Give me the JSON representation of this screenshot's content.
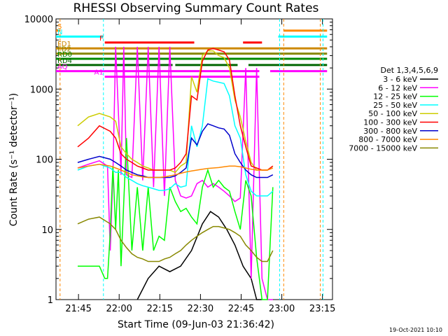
{
  "chart_data": {
    "type": "line",
    "title": "RHESSI Observing Summary Count Rates",
    "xlabel": "Start Time (09-Jun-03 21:36:42)",
    "ylabel": "Count Rate (s⁻¹ detector⁻¹)",
    "footer": "19-Oct-2021 10:10",
    "y_scale": "log",
    "ylim": [
      1,
      10000
    ],
    "xlim_minutes": [
      0,
      102
    ],
    "x_ticks": [
      {
        "label": "21:45",
        "minute": 8.3
      },
      {
        "label": "22:00",
        "minute": 23.3
      },
      {
        "label": "22:15",
        "minute": 38.3
      },
      {
        "label": "22:30",
        "minute": 53.3
      },
      {
        "label": "22:45",
        "minute": 68.3
      },
      {
        "label": "23:00",
        "minute": 83.3
      },
      {
        "label": "23:15",
        "minute": 98.3
      }
    ],
    "y_ticks": [
      {
        "label": "1",
        "value": 1
      },
      {
        "label": "10",
        "value": 10
      },
      {
        "label": "100",
        "value": 100
      },
      {
        "label": "1000",
        "value": 1000
      },
      {
        "label": "10000",
        "value": 10000
      }
    ],
    "legend_title": "Det 1,3,4,5,6,9",
    "legend_position": "right",
    "series": [
      {
        "name": "3 - 6 keV",
        "color": "#000000",
        "x": [
          30,
          34,
          38,
          42,
          46,
          50,
          54,
          57,
          60,
          63,
          66,
          69,
          72,
          74,
          75,
          76
        ],
        "y": [
          1,
          2,
          3,
          2.5,
          3,
          5,
          12,
          18,
          15,
          10,
          6,
          3,
          2,
          1,
          1,
          1
        ]
      },
      {
        "name": "6 - 12 keV",
        "color": "#ff00ff",
        "x": [
          8,
          12,
          16,
          19,
          20,
          21,
          22,
          24,
          25,
          26,
          28,
          30,
          32,
          34,
          36,
          38,
          40,
          42,
          44,
          46,
          48,
          50,
          52,
          54,
          56,
          58,
          60,
          62,
          64,
          66,
          68,
          70,
          72,
          74,
          76,
          78,
          80
        ],
        "y": [
          75,
          85,
          95,
          80,
          5,
          60,
          4000,
          60,
          4000,
          60,
          55,
          4000,
          50,
          4000,
          40,
          4000,
          30,
          4000,
          50,
          30,
          28,
          30,
          45,
          50,
          40,
          45,
          40,
          35,
          30,
          25,
          28,
          2000,
          2,
          2000,
          2,
          1,
          1
        ]
      },
      {
        "name": "12 - 25 keV",
        "color": "#00ff00",
        "x": [
          8,
          12,
          16,
          18,
          19,
          20,
          21,
          22,
          23,
          24,
          26,
          28,
          30,
          32,
          34,
          36,
          38,
          40,
          42,
          44,
          46,
          48,
          50,
          52,
          54,
          56,
          58,
          60,
          62,
          64,
          66,
          68,
          70,
          72,
          74,
          76,
          78,
          80
        ],
        "y": [
          3,
          3,
          3,
          2,
          2,
          9,
          80,
          10,
          70,
          3,
          200,
          5,
          40,
          5,
          40,
          5,
          8,
          7,
          40,
          25,
          18,
          20,
          15,
          12,
          40,
          70,
          40,
          50,
          40,
          35,
          18,
          10,
          50,
          30,
          4,
          1,
          1,
          40
        ]
      },
      {
        "name": "25 - 50 keV",
        "color": "#00ffff",
        "x": [
          8,
          12,
          16,
          20,
          22,
          24,
          26,
          28,
          30,
          32,
          34,
          36,
          38,
          40,
          42,
          44,
          46,
          48,
          50,
          52,
          54,
          56,
          58,
          60,
          62,
          64,
          66,
          68,
          70,
          72,
          74,
          76,
          78,
          80
        ],
        "y": [
          70,
          80,
          85,
          75,
          65,
          65,
          55,
          50,
          45,
          42,
          40,
          38,
          36,
          36,
          38,
          45,
          40,
          42,
          300,
          150,
          300,
          1400,
          1300,
          1250,
          1200,
          800,
          300,
          200,
          60,
          35,
          30,
          30,
          30,
          35
        ]
      },
      {
        "name": "50 - 100 keV",
        "color": "#cccc00",
        "x": [
          8,
          12,
          16,
          20,
          22,
          24,
          26,
          28,
          30,
          32,
          34,
          36,
          38,
          40,
          42,
          44,
          46,
          48,
          50,
          52,
          54,
          56,
          58,
          60,
          62,
          64,
          66,
          68,
          70,
          72,
          74,
          76,
          78,
          80
        ],
        "y": [
          300,
          400,
          450,
          400,
          350,
          150,
          120,
          100,
          90,
          80,
          75,
          70,
          70,
          70,
          70,
          65,
          80,
          90,
          1500,
          900,
          3000,
          3500,
          3500,
          3000,
          2800,
          2000,
          700,
          400,
          180,
          90,
          70,
          70,
          70,
          80
        ]
      },
      {
        "name": "100 - 300 keV",
        "color": "#ff0000",
        "x": [
          8,
          12,
          16,
          20,
          22,
          24,
          26,
          28,
          30,
          32,
          34,
          36,
          38,
          40,
          42,
          44,
          46,
          48,
          50,
          52,
          54,
          56,
          58,
          60,
          62,
          64,
          66,
          68,
          70,
          72,
          74,
          76,
          78,
          80
        ],
        "y": [
          150,
          200,
          300,
          250,
          200,
          120,
          100,
          90,
          80,
          75,
          70,
          70,
          70,
          70,
          70,
          75,
          90,
          120,
          800,
          700,
          2500,
          3600,
          3800,
          3600,
          3400,
          2600,
          800,
          300,
          150,
          80,
          75,
          70,
          70,
          80
        ]
      },
      {
        "name": "300 - 800 keV",
        "color": "#0000cc",
        "x": [
          8,
          12,
          16,
          20,
          22,
          24,
          26,
          28,
          30,
          32,
          34,
          36,
          38,
          40,
          42,
          44,
          46,
          48,
          50,
          52,
          54,
          56,
          58,
          60,
          62,
          64,
          66,
          68,
          70,
          72,
          74,
          76,
          78,
          80
        ],
        "y": [
          90,
          100,
          110,
          100,
          90,
          80,
          70,
          65,
          60,
          58,
          55,
          55,
          55,
          55,
          55,
          58,
          65,
          75,
          200,
          160,
          250,
          320,
          300,
          280,
          270,
          220,
          120,
          90,
          70,
          60,
          55,
          55,
          55,
          60
        ]
      },
      {
        "name": "800 - 7000 keV",
        "color": "#ff8800",
        "x": [
          8,
          12,
          16,
          20,
          22,
          24,
          26,
          28,
          30,
          32,
          34,
          36,
          38,
          40,
          42,
          44,
          46,
          48,
          50,
          52,
          54,
          56,
          58,
          60,
          62,
          64,
          66,
          68,
          70,
          72,
          74,
          76,
          78,
          80
        ],
        "y": [
          75,
          80,
          85,
          80,
          75,
          70,
          65,
          60,
          58,
          56,
          55,
          55,
          55,
          56,
          58,
          60,
          63,
          66,
          68,
          70,
          72,
          74,
          75,
          76,
          78,
          80,
          80,
          78,
          75,
          72,
          70,
          70,
          70,
          75
        ]
      },
      {
        "name": "7000 - 15000 keV",
        "color": "#888800",
        "x": [
          8,
          12,
          16,
          20,
          22,
          24,
          26,
          28,
          30,
          32,
          34,
          36,
          38,
          40,
          42,
          44,
          46,
          48,
          50,
          52,
          54,
          56,
          58,
          60,
          62,
          64,
          66,
          68,
          70,
          72,
          74,
          76,
          78,
          80
        ],
        "y": [
          12,
          14,
          15,
          12,
          10,
          7,
          5.5,
          4.5,
          4,
          3.8,
          3.5,
          3.5,
          3.5,
          3.8,
          4,
          4.5,
          5,
          6,
          7,
          8,
          9,
          10,
          11,
          11,
          10.5,
          10,
          9,
          8,
          6,
          5,
          4,
          3.5,
          3.5,
          5
        ]
      }
    ],
    "flag_bars": [
      {
        "label": "S",
        "color": "#ff8800",
        "segments": [
          [
            0,
            1.5
          ],
          [
            84,
            100
          ]
        ],
        "y": 6800
      },
      {
        "label": "N",
        "color": "#00ffff",
        "segments": [
          [
            0,
            17.5
          ],
          [
            82,
            100
          ]
        ],
        "y": 5600
      },
      {
        "label": "F",
        "color": "#ff0000",
        "segments": [
          [
            18,
            51
          ],
          [
            69,
            76
          ]
        ],
        "y": 4600
      },
      {
        "label": "FD1",
        "color": "#cc8800",
        "segments": [
          [
            0,
            100
          ]
        ],
        "y": 3800
      },
      {
        "label": "FD2",
        "color": "#888800",
        "segments": [
          [
            0,
            100
          ]
        ],
        "y": 3200
      },
      {
        "label": "RD0",
        "color": "#008800",
        "segments": [
          [
            0,
            100
          ]
        ],
        "y": 2700
      },
      {
        "label": "RD4",
        "color": "#006600",
        "segments": [
          [
            0,
            43
          ],
          [
            44,
            67
          ],
          [
            71,
            100
          ]
        ],
        "y": 2200
      },
      {
        "label": "AQ",
        "color": "#ff00ff",
        "segments": [
          [
            0,
            75
          ],
          [
            79,
            100
          ]
        ],
        "y": 1800
      },
      {
        "label": "A1",
        "color": "#ff00ff",
        "segments": [
          [
            18,
            75
          ]
        ],
        "y": 1500
      }
    ]
  }
}
